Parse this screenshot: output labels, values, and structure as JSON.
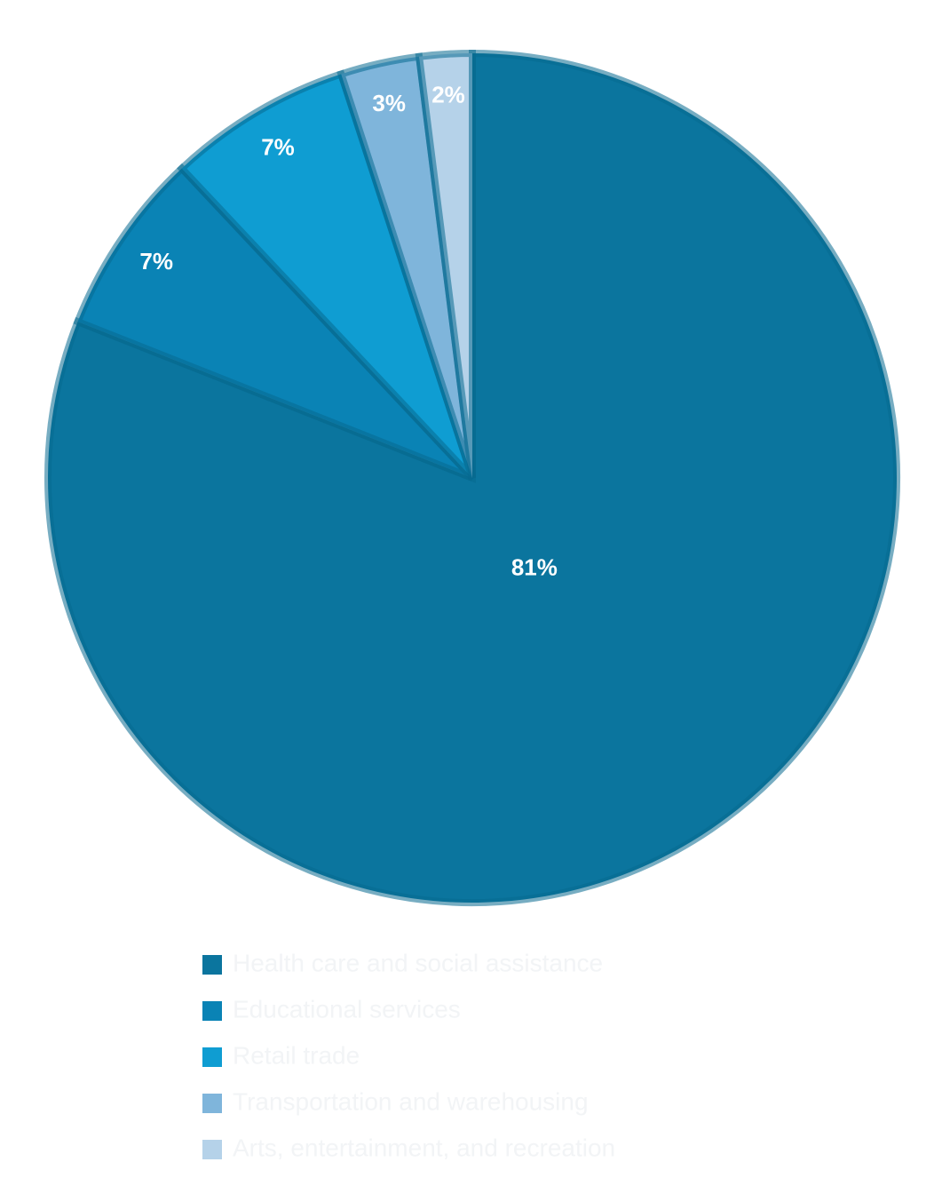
{
  "chart_data": {
    "type": "pie",
    "categories": [
      "Health care and social assistance",
      "Educational services",
      "Retail trade",
      "Transportation and warehousing",
      "Arts, entertainment, and recreation"
    ],
    "values": [
      81,
      7,
      7,
      3,
      2
    ],
    "value_labels": [
      "81%",
      "7%",
      "7%",
      "3%",
      "2%"
    ],
    "colors": [
      "#0b759e",
      "#0a83b5",
      "#0f9dd2",
      "#7fb5db",
      "#b5d2e9"
    ]
  }
}
